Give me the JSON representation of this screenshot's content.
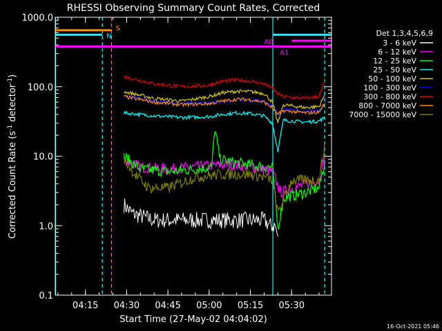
{
  "chart_data": {
    "type": "line",
    "title": "RHESSI Observing Summary Count Rates, Corrected",
    "xlabel": "Start Time (27-May-02 04:04:02)",
    "ylabel_main": "Corrected Count Rate (s",
    "ylabel_sup1": "-1",
    "ylabel_mid": " detector",
    "ylabel_sup2": "-1",
    "ylabel_end": ")",
    "y_scale": "log",
    "ylim": [
      0.1,
      1000
    ],
    "xlim": [
      "04:04:02",
      "05:44:30"
    ],
    "x_ticks": [
      "04:15",
      "04:30",
      "04:45",
      "05:00",
      "05:15",
      "05:30"
    ],
    "y_ticks": [
      "0.1",
      "1.0",
      "10.0",
      "100.0",
      "1000.0"
    ],
    "legend_title": "Det 1,3,4,5,6,9",
    "legend_position": "right",
    "timestamp": "16-Oct-2021 05:46",
    "bar_labels": [
      "S",
      "N",
      "A0",
      "A1"
    ],
    "time_markers": [
      {
        "time": "04:04:10",
        "color": "#00ffff"
      },
      {
        "time": "04:21:10",
        "color": "#00ffff",
        "style": "dashed"
      },
      {
        "time": "04:24:30",
        "color": "#ff8c00",
        "style": "dashed"
      },
      {
        "time": "05:23:10",
        "color": "#00ffff"
      },
      {
        "time": "05:42:00",
        "color": "#00ffff",
        "style": "dashed"
      }
    ],
    "series": [
      {
        "name": "3 - 6 keV",
        "color": "#ffffff",
        "times": [
          "04:29",
          "04:32",
          "04:40",
          "04:50",
          "05:00",
          "05:10",
          "05:20",
          "05:22",
          "05:24",
          "05:25"
        ],
        "values": [
          2.0,
          1.5,
          1.2,
          1.2,
          1.2,
          1.2,
          1.2,
          1.0,
          1.0,
          0.7
        ]
      },
      {
        "name": "6 - 12 keV",
        "color": "#ff00ff",
        "times": [
          "04:29",
          "04:35",
          "04:45",
          "04:55",
          "05:05",
          "05:10",
          "05:15",
          "05:20",
          "05:23",
          "05:26",
          "05:35",
          "05:40",
          "05:42"
        ],
        "values": [
          9.0,
          7.0,
          6.5,
          7.0,
          7.5,
          7.5,
          7.0,
          6.5,
          6.0,
          3.0,
          4.0,
          4.5,
          10.0
        ]
      },
      {
        "name": "12 - 25 keV",
        "color": "#00ff00",
        "times": [
          "04:29",
          "04:35",
          "04:45",
          "04:55",
          "05:01",
          "05:02",
          "05:04",
          "05:10",
          "05:15",
          "05:20",
          "05:23",
          "05:25",
          "05:27",
          "05:35",
          "05:40",
          "05:42"
        ],
        "values": [
          10.0,
          6.5,
          6.0,
          6.5,
          7.0,
          25.0,
          9.0,
          8.0,
          7.5,
          7.0,
          7.0,
          0.9,
          2.5,
          3.0,
          3.5,
          8.0
        ]
      },
      {
        "name": "25 - 50 keV",
        "color": "#00ffff",
        "times": [
          "04:29",
          "04:40",
          "04:50",
          "05:00",
          "05:05",
          "05:10",
          "05:15",
          "05:20",
          "05:23",
          "05:25",
          "05:27",
          "05:30",
          "05:35",
          "05:40",
          "05:42"
        ],
        "values": [
          42.0,
          38.0,
          36.0,
          37.0,
          40.0,
          42.0,
          41.0,
          38.0,
          30.0,
          12.0,
          33.0,
          32.0,
          31.0,
          32.0,
          36.0
        ]
      },
      {
        "name": "50 - 100 keV",
        "color": "#d8c800",
        "times": [
          "04:29",
          "04:40",
          "04:50",
          "05:00",
          "05:05",
          "05:10",
          "05:15",
          "05:20",
          "05:23",
          "05:25",
          "05:27",
          "05:30",
          "05:35",
          "05:40",
          "05:42"
        ],
        "values": [
          85.0,
          68.0,
          62.0,
          72.0,
          82.0,
          86.0,
          85.0,
          80.0,
          60.0,
          30.0,
          55.0,
          53.0,
          50.0,
          52.0,
          75.0
        ]
      },
      {
        "name": "100 - 300 keV",
        "color": "#0000ff",
        "times": [
          "04:29",
          "04:40",
          "04:50",
          "05:00",
          "05:05",
          "05:10",
          "05:15",
          "05:20",
          "05:23",
          "05:25",
          "05:27",
          "05:30",
          "05:35",
          "05:40",
          "05:42"
        ],
        "values": [
          75.0,
          62.0,
          57.0,
          58.0,
          62.0,
          65.0,
          64.0,
          62.0,
          52.0,
          40.0,
          47.0,
          46.0,
          44.0,
          45.0,
          60.0
        ]
      },
      {
        "name": "300 - 800 keV",
        "color": "#e00000",
        "times": [
          "04:29",
          "04:40",
          "04:50",
          "05:00",
          "05:05",
          "05:10",
          "05:15",
          "05:20",
          "05:23",
          "05:25",
          "05:27",
          "05:30",
          "05:35",
          "05:40",
          "05:42"
        ],
        "values": [
          140.0,
          110.0,
          100.0,
          105.0,
          120.0,
          125.0,
          120.0,
          110.0,
          95.0,
          80.0,
          72.0,
          70.0,
          68.0,
          72.0,
          120.0
        ]
      },
      {
        "name": "800 - 7000 keV",
        "color": "#ff8c00",
        "times": [
          "04:29",
          "04:40",
          "04:50",
          "05:00",
          "05:05",
          "05:10",
          "05:15",
          "05:20",
          "05:23",
          "05:25",
          "05:27",
          "05:30",
          "05:35",
          "05:40",
          "05:42"
        ],
        "values": [
          72.0,
          60.0,
          55.0,
          57.0,
          62.0,
          66.0,
          65.0,
          60.0,
          50.0,
          40.0,
          45.0,
          44.0,
          42.0,
          43.0,
          58.0
        ]
      },
      {
        "name": "7000 - 15000 keV",
        "color": "#808000",
        "times": [
          "04:29",
          "04:33",
          "04:38",
          "04:45",
          "04:55",
          "05:05",
          "05:10",
          "05:15",
          "05:20",
          "05:23",
          "05:25",
          "05:30",
          "05:35",
          "05:40",
          "05:42"
        ],
        "values": [
          9.0,
          5.5,
          3.5,
          3.5,
          5.0,
          5.5,
          5.5,
          5.5,
          5.0,
          4.5,
          1.5,
          4.5,
          4.5,
          4.5,
          15.0
        ]
      }
    ],
    "attenuator_bars": [
      {
        "label": "S",
        "color": "#ff8c00",
        "start": "04:04:02",
        "end": "04:24:30",
        "level": 650
      },
      {
        "label": "N",
        "color": "#00ffff",
        "start": "04:04:02",
        "end": "04:21:10",
        "level": 560
      },
      {
        "label": "",
        "color": "#00ffff",
        "start": "05:23:10",
        "end": "05:44:30",
        "level": 560
      },
      {
        "label": "",
        "color": "#ff00ff",
        "start": "04:04:02",
        "end": "05:30:00",
        "level": 380
      },
      {
        "label": "A0",
        "color": "#ff00ff",
        "start": "05:30:00",
        "end": "05:44:30",
        "level": 460
      },
      {
        "label": "A1",
        "color": "#ff00ff",
        "start": "05:30:00",
        "end": "05:44:30",
        "level": 380
      }
    ]
  }
}
